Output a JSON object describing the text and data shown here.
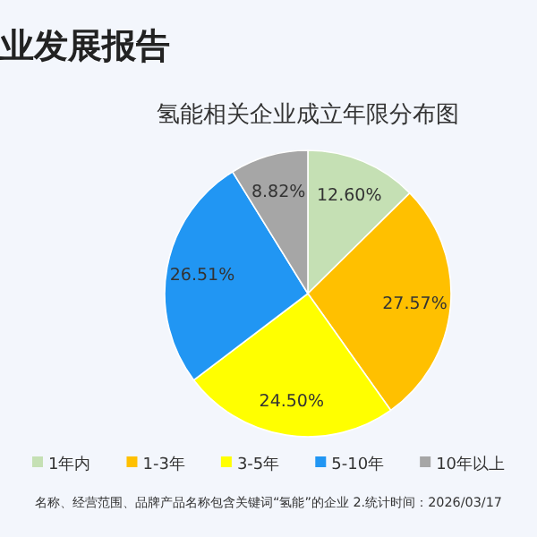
{
  "chart_data": {
    "type": "pie",
    "title": "业发展报告",
    "subtitle": "氢能相关企业成立年限分布图",
    "categories": [
      "1年内",
      "1-3年",
      "3-5年",
      "5-10年",
      "10年以上"
    ],
    "values": [
      12.6,
      27.57,
      24.5,
      26.51,
      8.82
    ],
    "colors": [
      "#c5e0b4",
      "#ffc000",
      "#ffff00",
      "#2196f3",
      "#a6a6a6"
    ],
    "value_labels": [
      "12.60%",
      "27.57%",
      "24.50%",
      "26.51%",
      "8.82%"
    ],
    "legend": "bottom",
    "annotations": [
      "名称、经营范围、品牌产品名称包含关键词“氢能”的企业  2.统计时间：2026/03/17"
    ]
  }
}
